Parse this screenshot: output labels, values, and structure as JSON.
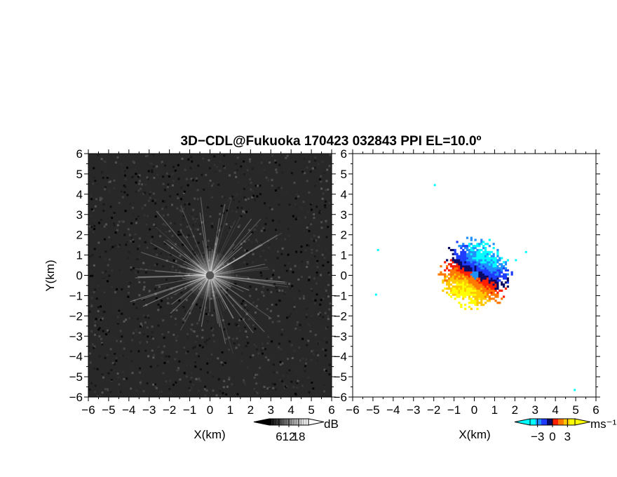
{
  "title": "3D−CDL@Fukuoka 170423 032843 PPI EL=10.0º",
  "chart_data": [
    {
      "type": "heatmap",
      "panel": "reflectivity",
      "xlabel": "X(km)",
      "ylabel": "Y(km)",
      "xlim": [
        -6,
        6
      ],
      "ylim": [
        -6,
        6
      ],
      "xticks": [
        "−6",
        "−5",
        "−4",
        "−3",
        "−2",
        "−1",
        "0",
        "1",
        "2",
        "3",
        "4",
        "5",
        "6"
      ],
      "yticks": [
        "−6",
        "−5",
        "−4",
        "−3",
        "−2",
        "−1",
        "0",
        "1",
        "2",
        "3",
        "4",
        "5",
        "6"
      ],
      "background_color": "#282828",
      "features": {
        "echo_center": [
          0,
          0
        ],
        "bright_core_radius_km": 1.2,
        "max_streak_length_km": 4.2,
        "blank_center_radius_km": 0.2
      },
      "colorbar": {
        "unit": "dB",
        "tick_labels": [
          "6",
          "12",
          "18"
        ],
        "range": [
          0,
          24
        ],
        "colors": [
          "#000000",
          "#ffffff"
        ]
      }
    },
    {
      "type": "heatmap",
      "panel": "doppler_velocity",
      "xlabel": "X(km)",
      "ylabel": "",
      "xlim": [
        -6,
        6
      ],
      "ylim": [
        -6,
        6
      ],
      "xticks": [
        "−6",
        "−5",
        "−4",
        "−3",
        "−2",
        "−1",
        "0",
        "1",
        "2",
        "3",
        "4",
        "5",
        "6"
      ],
      "yticks": [
        "−6",
        "−5",
        "−4",
        "−3",
        "−2",
        "−1",
        "0",
        "1",
        "2",
        "3",
        "4",
        "5",
        "6"
      ],
      "background_color": "#ffffff",
      "features": {
        "echo_center": [
          0,
          0
        ],
        "echo_radius_km": 1.9,
        "negative_velocity_side": "north",
        "positive_velocity_side": "south",
        "center_value": -2.5,
        "isolated_pixels": [
          [
            -2,
            4.5
          ],
          [
            -4.8,
            1.3
          ],
          [
            -4.9,
            -0.9
          ],
          [
            4.9,
            -5.6
          ],
          [
            2.5,
            1.2
          ],
          [
            2.0,
            0.8
          ]
        ]
      },
      "colorbar": {
        "unit": "ms⁻¹",
        "tick_labels": [
          "−3",
          "0",
          "3"
        ],
        "range": [
          -4.5,
          4.5
        ],
        "colors": [
          "#00ffff",
          "#1e90ff",
          "#1e3cff",
          "#0a0a64",
          "#ff1e00",
          "#ff7800",
          "#ffc800",
          "#ffff00"
        ]
      }
    }
  ]
}
